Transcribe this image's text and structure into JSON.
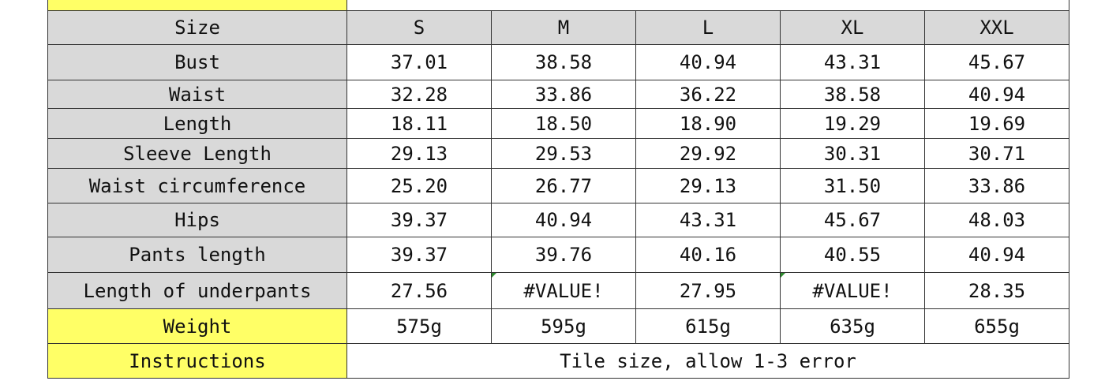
{
  "header": {
    "label": "Size",
    "sizes": [
      "S",
      "M",
      "L",
      "XL",
      "XXL"
    ]
  },
  "rows": [
    {
      "label": "Bust",
      "values": [
        "37.01",
        "38.58",
        "40.94",
        "43.31",
        "45.67"
      ]
    },
    {
      "label": "Waist",
      "values": [
        "32.28",
        "33.86",
        "36.22",
        "38.58",
        "40.94"
      ]
    },
    {
      "label": "Length",
      "values": [
        "18.11",
        "18.50",
        "18.90",
        "19.29",
        "19.69"
      ]
    },
    {
      "label": "Sleeve Length",
      "values": [
        "29.13",
        "29.53",
        "29.92",
        "30.31",
        "30.71"
      ]
    },
    {
      "label": "Waist circumference",
      "values": [
        "25.20",
        "26.77",
        "29.13",
        "31.50",
        "33.86"
      ]
    },
    {
      "label": "Hips",
      "values": [
        "39.37",
        "40.94",
        "43.31",
        "45.67",
        "48.03"
      ]
    },
    {
      "label": "Pants length",
      "values": [
        "39.37",
        "39.76",
        "40.16",
        "40.55",
        "40.94"
      ]
    },
    {
      "label": "Length of underpants",
      "values": [
        "27.56",
        "#VALUE!",
        "27.95",
        "#VALUE!",
        "28.35"
      ]
    }
  ],
  "weight": {
    "label": "Weight",
    "values": [
      "575g",
      "595g",
      "615g",
      "635g",
      "655g"
    ]
  },
  "instructions": {
    "label": "Instructions",
    "text": "Tile size, allow 1-3 error"
  },
  "colors": {
    "header_gray": "#d9d9d9",
    "highlight_yellow": "#ffff66",
    "error_flag": "#2e8b2e"
  }
}
